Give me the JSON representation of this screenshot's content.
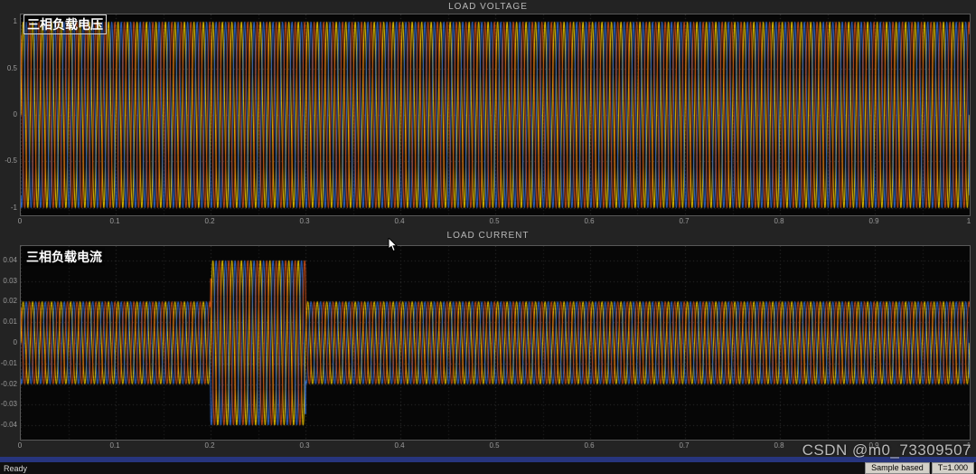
{
  "window": {
    "background": "#232323",
    "plot_background": "#060606",
    "grid_color": "#323232",
    "minor_grid_color": "#262626"
  },
  "status_bar": {
    "ready": "Ready",
    "sample_mode": "Sample based",
    "time": "T=1.000"
  },
  "watermark": "CSDN @m0_73309507",
  "chart_data": [
    {
      "type": "line",
      "title": "LOAD VOLTAGE",
      "overlay_label": "三相负载电压",
      "x_range": [
        0,
        1
      ],
      "y_range": [
        -1.08,
        1.08
      ],
      "x_ticks": [
        0,
        0.1,
        0.2,
        0.3,
        0.4,
        0.5,
        0.6,
        0.7,
        0.8,
        0.9,
        1
      ],
      "x_tick_labels": [
        "0",
        "0.1",
        "0.2",
        "0.3",
        "0.4",
        "0.5",
        "0.6",
        "0.7",
        "0.8",
        "0.9",
        "1"
      ],
      "y_ticks": [
        1,
        0.5,
        0,
        -0.5,
        -1
      ],
      "y_tick_labels": [
        "1",
        "0.5",
        "0",
        "-0.5",
        "-1"
      ],
      "frequency_hz": 100,
      "amplitude_segments": [
        {
          "t_start": 0,
          "t_end": 1,
          "amplitude": 1
        }
      ],
      "series": [
        {
          "name": "phase-a-voltage",
          "color": "#ffd500",
          "phase_deg": 0
        },
        {
          "name": "phase-b-voltage",
          "color": "#3572e0",
          "phase_deg": -120
        },
        {
          "name": "phase-c-voltage",
          "color": "#d95319",
          "phase_deg": -240
        }
      ],
      "grid": true,
      "legend": "none"
    },
    {
      "type": "line",
      "title": "LOAD CURRENT",
      "overlay_label": "三相负载电流",
      "x_range": [
        0,
        1
      ],
      "y_range": [
        -0.047,
        0.047
      ],
      "x_ticks": [
        0,
        0.1,
        0.2,
        0.3,
        0.4,
        0.5,
        0.6,
        0.7,
        0.8,
        0.9,
        1
      ],
      "x_tick_labels": [
        "0",
        "0.1",
        "0.2",
        "0.3",
        "0.4",
        "0.5",
        "0.6",
        "0.7",
        "0.8",
        "0.9",
        "1"
      ],
      "y_ticks": [
        0.04,
        0.03,
        0.02,
        0.01,
        0,
        -0.01,
        -0.02,
        -0.03,
        -0.04
      ],
      "y_tick_labels": [
        "0.04",
        "0.03",
        "0.02",
        "0.01",
        "0",
        "-0.01",
        "-0.02",
        "-0.03",
        "-0.04"
      ],
      "frequency_hz": 100,
      "amplitude_segments": [
        {
          "t_start": 0,
          "t_end": 0.2,
          "amplitude": 0.02
        },
        {
          "t_start": 0.2,
          "t_end": 0.3,
          "amplitude": 0.04
        },
        {
          "t_start": 0.3,
          "t_end": 1,
          "amplitude": 0.02
        }
      ],
      "series": [
        {
          "name": "phase-a-current",
          "color": "#ffd500",
          "phase_deg": 0
        },
        {
          "name": "phase-b-current",
          "color": "#3572e0",
          "phase_deg": -120
        },
        {
          "name": "phase-c-current",
          "color": "#d95319",
          "phase_deg": -240
        }
      ],
      "grid": true,
      "legend": "none"
    }
  ]
}
